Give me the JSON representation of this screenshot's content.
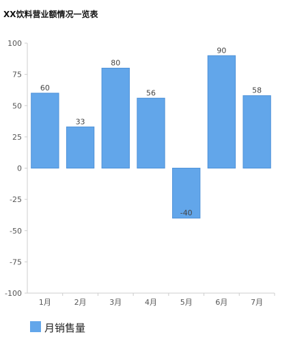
{
  "chart_data": {
    "type": "bar",
    "title": "XX饮料营业额情况一览表",
    "xlabel": "",
    "ylabel": "",
    "categories": [
      "1月",
      "2月",
      "3月",
      "4月",
      "5月",
      "6月",
      "7月"
    ],
    "series": [
      {
        "name": "月销售量",
        "values": [
          60,
          33,
          80,
          56,
          -40,
          90,
          58
        ]
      }
    ],
    "ylim": [
      -100,
      100
    ],
    "yticks": [
      100,
      75,
      50,
      25,
      0,
      -25,
      -50,
      -75,
      -100
    ],
    "grid": false,
    "legend": "bottom-left",
    "colors": {
      "bar": "#62a6ea",
      "bar_stroke": "#4f92d8"
    }
  }
}
